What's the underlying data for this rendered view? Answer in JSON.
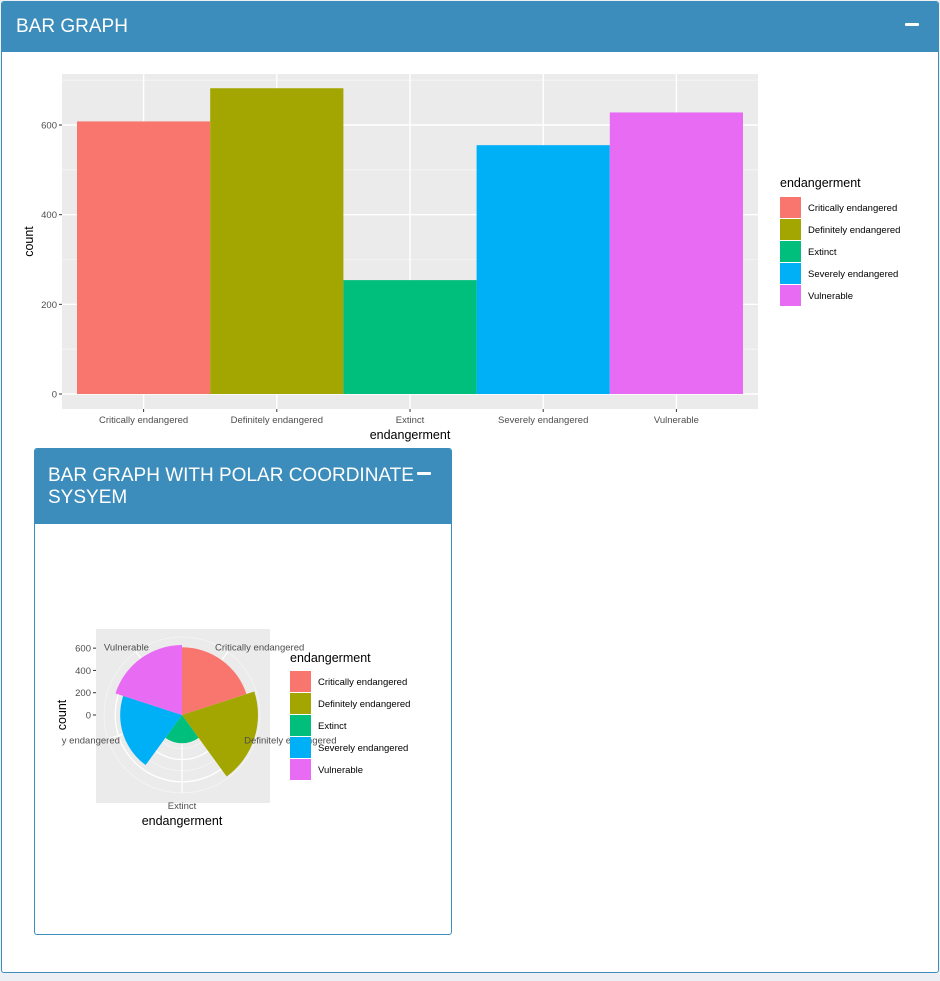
{
  "main_box": {
    "title": "BAR GRAPH"
  },
  "polar_box": {
    "title": "BAR GRAPH WITH POLAR COORDINATE SYSYEM"
  },
  "colors": {
    "header": "#3c8dbc",
    "panel_bg": "#ebebeb",
    "series": [
      "#F8766D",
      "#A3A500",
      "#00BF7D",
      "#00B0F6",
      "#E76BF3"
    ]
  },
  "chart_data": [
    {
      "type": "bar",
      "title": "",
      "xlabel": "endangerment",
      "ylabel": "count",
      "categories": [
        "Critically endangered",
        "Definitely endangered",
        "Extinct",
        "Severely endangered",
        "Vulnerable"
      ],
      "values": [
        608,
        682,
        254,
        555,
        628
      ],
      "ylim": [
        0,
        700
      ],
      "yticks": [
        0,
        200,
        400,
        600
      ],
      "grid": true,
      "legend": {
        "title": "endangerment",
        "position": "right",
        "entries": [
          "Critically endangered",
          "Definitely endangered",
          "Extinct",
          "Severely endangered",
          "Vulnerable"
        ]
      }
    },
    {
      "type": "bar",
      "coordinates": "polar",
      "title": "",
      "xlabel": "endangerment",
      "ylabel": "count",
      "categories": [
        "Critically endangered",
        "Definitely endangered",
        "Extinct",
        "Severely endangered",
        "Vulnerable"
      ],
      "category_labels": [
        "Critically endangered",
        "Definitely endangered",
        "Extinct",
        "y endangered",
        "Vulnerable"
      ],
      "values": [
        608,
        682,
        254,
        555,
        628
      ],
      "ylim": [
        0,
        700
      ],
      "yticks": [
        0,
        200,
        400,
        600
      ],
      "grid": true,
      "legend": {
        "title": "endangerment",
        "position": "right",
        "entries": [
          "Critically endangered",
          "Definitely endangered",
          "Extinct",
          "Severely endangered",
          "Vulnerable"
        ]
      }
    }
  ]
}
